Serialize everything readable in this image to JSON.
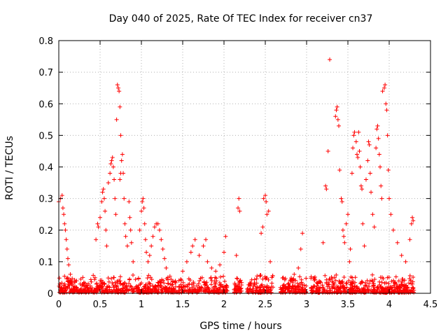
{
  "chart_data": {
    "type": "scatter",
    "title": "Day 040 of 2025, Rate Of TEC Index for receiver cn37",
    "xlabel": "GPS time / hours",
    "ylabel": "ROTI / TECUs",
    "xlim": [
      0,
      4.5
    ],
    "ylim": [
      0,
      0.8
    ],
    "xticks": [
      0,
      0.5,
      1,
      1.5,
      2,
      2.5,
      3,
      3.5,
      4,
      4.5
    ],
    "xtick_labels": [
      "0",
      "0.5",
      "1",
      "1.5",
      "2",
      "2.5",
      "3",
      "3.5",
      "4",
      "4.5"
    ],
    "yticks": [
      0,
      0.1,
      0.2,
      0.3,
      0.4,
      0.5,
      0.6,
      0.7,
      0.8
    ],
    "ytick_labels": [
      "0",
      "0.1",
      "0.2",
      "0.3",
      "0.4",
      "0.5",
      "0.6",
      "0.7",
      "0.8"
    ],
    "grid": true,
    "marker": "+",
    "marker_color": "#ff0000",
    "series": [
      {
        "name": "ROTI",
        "points": [
          [
            0.0,
            0.29
          ],
          [
            0.02,
            0.3
          ],
          [
            0.04,
            0.31
          ],
          [
            0.05,
            0.27
          ],
          [
            0.06,
            0.25
          ],
          [
            0.07,
            0.22
          ],
          [
            0.08,
            0.2
          ],
          [
            0.09,
            0.17
          ],
          [
            0.1,
            0.14
          ],
          [
            0.11,
            0.11
          ],
          [
            0.12,
            0.09
          ],
          [
            0.14,
            0.06
          ],
          [
            0.45,
            0.17
          ],
          [
            0.47,
            0.22
          ],
          [
            0.48,
            0.21
          ],
          [
            0.5,
            0.24
          ],
          [
            0.52,
            0.29
          ],
          [
            0.53,
            0.32
          ],
          [
            0.54,
            0.33
          ],
          [
            0.55,
            0.3
          ],
          [
            0.56,
            0.26
          ],
          [
            0.57,
            0.2
          ],
          [
            0.58,
            0.15
          ],
          [
            0.6,
            0.35
          ],
          [
            0.62,
            0.38
          ],
          [
            0.63,
            0.41
          ],
          [
            0.64,
            0.42
          ],
          [
            0.65,
            0.43
          ],
          [
            0.66,
            0.4
          ],
          [
            0.67,
            0.36
          ],
          [
            0.68,
            0.3
          ],
          [
            0.69,
            0.25
          ],
          [
            0.7,
            0.55
          ],
          [
            0.71,
            0.66
          ],
          [
            0.72,
            0.65
          ],
          [
            0.73,
            0.64
          ],
          [
            0.74,
            0.59
          ],
          [
            0.75,
            0.5
          ],
          [
            0.76,
            0.42
          ],
          [
            0.77,
            0.44
          ],
          [
            0.75,
            0.38
          ],
          [
            0.74,
            0.36
          ],
          [
            0.78,
            0.38
          ],
          [
            0.79,
            0.3
          ],
          [
            0.8,
            0.22
          ],
          [
            0.81,
            0.18
          ],
          [
            0.83,
            0.15
          ],
          [
            0.85,
            0.29
          ],
          [
            0.86,
            0.24
          ],
          [
            0.87,
            0.2
          ],
          [
            0.88,
            0.16
          ],
          [
            0.9,
            0.1
          ],
          [
            0.98,
            0.2
          ],
          [
            1.0,
            0.26
          ],
          [
            1.01,
            0.29
          ],
          [
            1.02,
            0.3
          ],
          [
            1.03,
            0.27
          ],
          [
            1.04,
            0.22
          ],
          [
            1.05,
            0.17
          ],
          [
            1.06,
            0.13
          ],
          [
            1.08,
            0.1
          ],
          [
            1.1,
            0.12
          ],
          [
            1.12,
            0.15
          ],
          [
            1.14,
            0.18
          ],
          [
            1.16,
            0.21
          ],
          [
            1.18,
            0.22
          ],
          [
            1.2,
            0.22
          ],
          [
            1.22,
            0.2
          ],
          [
            1.24,
            0.17
          ],
          [
            1.26,
            0.14
          ],
          [
            1.28,
            0.11
          ],
          [
            1.3,
            0.08
          ],
          [
            1.32,
            0.05
          ],
          [
            1.5,
            0.07
          ],
          [
            1.55,
            0.1
          ],
          [
            1.6,
            0.13
          ],
          [
            1.62,
            0.15
          ],
          [
            1.65,
            0.17
          ],
          [
            1.7,
            0.12
          ],
          [
            1.75,
            0.15
          ],
          [
            1.78,
            0.17
          ],
          [
            1.8,
            0.1
          ],
          [
            1.85,
            0.08
          ],
          [
            1.9,
            0.07
          ],
          [
            1.95,
            0.09
          ],
          [
            2.0,
            0.13
          ],
          [
            2.02,
            0.18
          ],
          [
            2.15,
            0.12
          ],
          [
            2.17,
            0.27
          ],
          [
            2.18,
            0.3
          ],
          [
            2.19,
            0.26
          ],
          [
            2.45,
            0.19
          ],
          [
            2.47,
            0.21
          ],
          [
            2.48,
            0.3
          ],
          [
            2.5,
            0.31
          ],
          [
            2.51,
            0.29
          ],
          [
            2.52,
            0.25
          ],
          [
            2.54,
            0.26
          ],
          [
            2.56,
            0.1
          ],
          [
            2.58,
            0.05
          ],
          [
            2.8,
            0.04
          ],
          [
            2.85,
            0.06
          ],
          [
            2.9,
            0.08
          ],
          [
            2.93,
            0.14
          ],
          [
            2.95,
            0.19
          ],
          [
            3.2,
            0.16
          ],
          [
            3.23,
            0.34
          ],
          [
            3.24,
            0.33
          ],
          [
            3.26,
            0.45
          ],
          [
            3.28,
            0.74
          ],
          [
            3.35,
            0.56
          ],
          [
            3.36,
            0.58
          ],
          [
            3.37,
            0.59
          ],
          [
            3.38,
            0.55
          ],
          [
            3.39,
            0.53
          ],
          [
            3.4,
            0.39
          ],
          [
            3.42,
            0.3
          ],
          [
            3.43,
            0.29
          ],
          [
            3.44,
            0.2
          ],
          [
            3.45,
            0.18
          ],
          [
            3.46,
            0.16
          ],
          [
            3.48,
            0.22
          ],
          [
            3.5,
            0.25
          ],
          [
            3.52,
            0.1
          ],
          [
            3.53,
            0.14
          ],
          [
            3.55,
            0.38
          ],
          [
            3.56,
            0.46
          ],
          [
            3.57,
            0.5
          ],
          [
            3.58,
            0.51
          ],
          [
            3.6,
            0.48
          ],
          [
            3.61,
            0.44
          ],
          [
            3.62,
            0.43
          ],
          [
            3.63,
            0.51
          ],
          [
            3.64,
            0.45
          ],
          [
            3.65,
            0.4
          ],
          [
            3.66,
            0.34
          ],
          [
            3.67,
            0.33
          ],
          [
            3.68,
            0.22
          ],
          [
            3.7,
            0.15
          ],
          [
            3.72,
            0.36
          ],
          [
            3.74,
            0.42
          ],
          [
            3.75,
            0.48
          ],
          [
            3.76,
            0.47
          ],
          [
            3.77,
            0.38
          ],
          [
            3.78,
            0.32
          ],
          [
            3.8,
            0.25
          ],
          [
            3.82,
            0.21
          ],
          [
            3.84,
            0.46
          ],
          [
            3.85,
            0.52
          ],
          [
            3.86,
            0.53
          ],
          [
            3.87,
            0.49
          ],
          [
            3.88,
            0.44
          ],
          [
            3.89,
            0.4
          ],
          [
            3.9,
            0.34
          ],
          [
            3.91,
            0.3
          ],
          [
            3.92,
            0.64
          ],
          [
            3.94,
            0.65
          ],
          [
            3.95,
            0.66
          ],
          [
            3.96,
            0.6
          ],
          [
            3.97,
            0.58
          ],
          [
            3.98,
            0.5
          ],
          [
            3.99,
            0.39
          ],
          [
            4.0,
            0.3
          ],
          [
            4.02,
            0.25
          ],
          [
            4.05,
            0.2
          ],
          [
            4.1,
            0.16
          ],
          [
            4.15,
            0.12
          ],
          [
            4.2,
            0.1
          ],
          [
            4.25,
            0.17
          ],
          [
            4.27,
            0.22
          ],
          [
            4.28,
            0.24
          ],
          [
            4.29,
            0.23
          ]
        ]
      }
    ]
  }
}
